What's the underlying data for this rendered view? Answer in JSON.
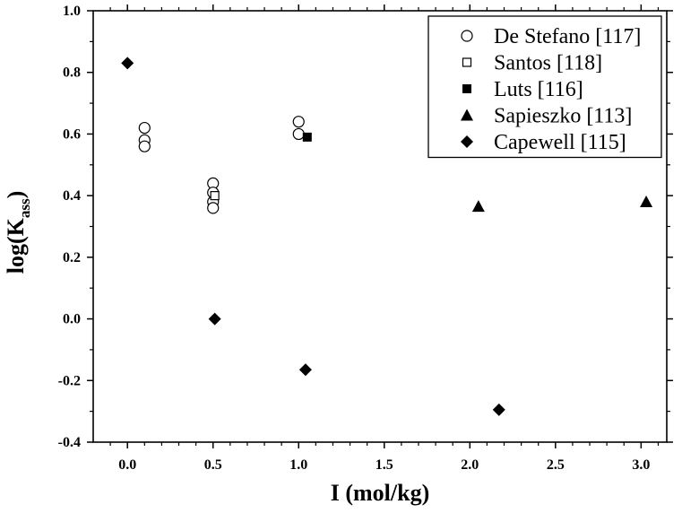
{
  "chart_data": {
    "type": "scatter",
    "xlabel": "I (mol/kg)",
    "ylabel_main": "log(K",
    "ylabel_sub": "ass",
    "ylabel_close": ")",
    "xlim": [
      -0.2,
      3.15
    ],
    "ylim": [
      -0.4,
      1.0
    ],
    "x_ticks": [
      0.0,
      0.5,
      1.0,
      1.5,
      2.0,
      2.5,
      3.0
    ],
    "x_tick_labels": [
      "0.0",
      "0.5",
      "1.0",
      "1.5",
      "2.0",
      "2.5",
      "3.0"
    ],
    "y_ticks": [
      -0.4,
      -0.2,
      0.0,
      0.2,
      0.4,
      0.6,
      0.8,
      1.0
    ],
    "y_tick_labels": [
      "-0.4",
      "-0.2",
      "0.0",
      "0.2",
      "0.4",
      "0.6",
      "0.8",
      "1.0"
    ],
    "grid": false,
    "legend_position": "top-right",
    "series": [
      {
        "name": "De Stefano [117]",
        "marker": "open-circle",
        "points": [
          [
            0.1,
            0.62
          ],
          [
            0.1,
            0.58
          ],
          [
            0.1,
            0.56
          ],
          [
            0.5,
            0.44
          ],
          [
            0.5,
            0.41
          ],
          [
            0.5,
            0.38
          ],
          [
            0.5,
            0.36
          ],
          [
            1.0,
            0.64
          ],
          [
            1.0,
            0.6
          ]
        ]
      },
      {
        "name": "Santos [118]",
        "marker": "open-square",
        "points": [
          [
            0.51,
            0.4
          ]
        ]
      },
      {
        "name": "Luts [116]",
        "marker": "filled-square",
        "points": [
          [
            1.05,
            0.59
          ]
        ]
      },
      {
        "name": "Sapieszko [113]",
        "marker": "filled-triangle",
        "points": [
          [
            2.05,
            0.365
          ],
          [
            3.03,
            0.38
          ]
        ]
      },
      {
        "name": "Capewell [115]",
        "marker": "filled-diamond",
        "points": [
          [
            0.0,
            0.83
          ],
          [
            0.51,
            0.0
          ],
          [
            1.04,
            -0.165
          ],
          [
            2.17,
            -0.295
          ]
        ]
      }
    ]
  }
}
